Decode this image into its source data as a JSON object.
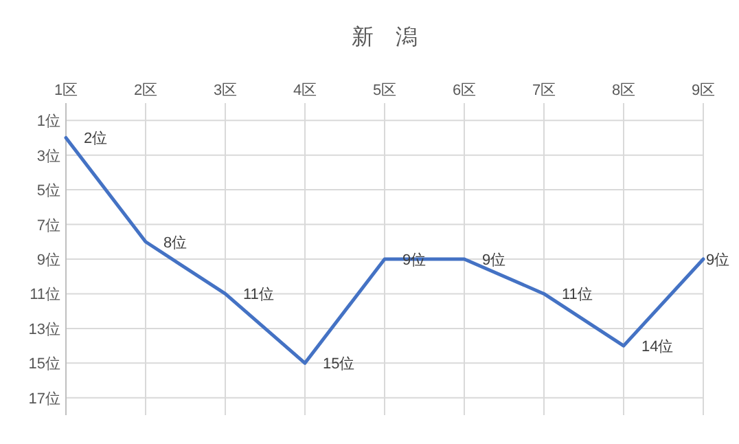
{
  "chart_data": {
    "type": "line",
    "title": "新　潟",
    "categories": [
      "1区",
      "2区",
      "3区",
      "4区",
      "5区",
      "6区",
      "7区",
      "8区",
      "9区"
    ],
    "series": [
      {
        "color": "#4472c4",
        "values": [
          2,
          8,
          11,
          15,
          9,
          9,
          11,
          14,
          9
        ],
        "value_labels": [
          "2位",
          "8位",
          "11位",
          "15位",
          "9位",
          "9位",
          "11位",
          "14位",
          "9位"
        ]
      }
    ],
    "ylim": [
      18,
      0
    ],
    "yticks": [
      {
        "value": 1,
        "label": "1位"
      },
      {
        "value": 3,
        "label": "3位"
      },
      {
        "value": 5,
        "label": "5位"
      },
      {
        "value": 7,
        "label": "7位"
      },
      {
        "value": 9,
        "label": "9位"
      },
      {
        "value": 11,
        "label": "11位"
      },
      {
        "value": 13,
        "label": "13位"
      },
      {
        "value": 15,
        "label": "15位"
      },
      {
        "value": 17,
        "label": "17位"
      }
    ],
    "grid": true,
    "marker": "none",
    "line_style": "solid"
  }
}
